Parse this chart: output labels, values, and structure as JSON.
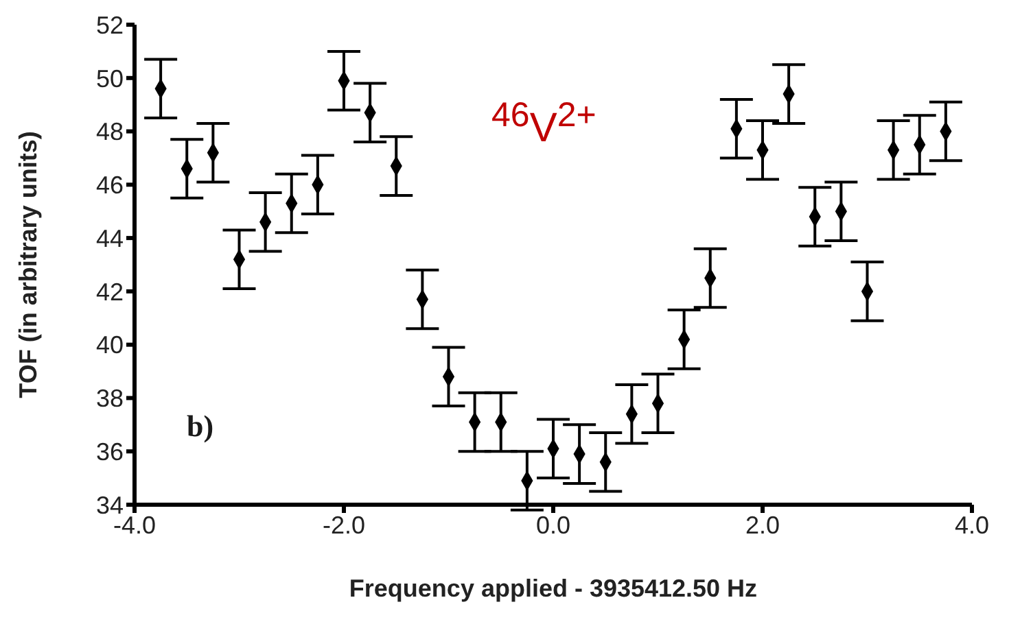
{
  "chart_data": {
    "type": "scatter",
    "xlabel": "Frequency applied - 3935412.50 Hz",
    "ylabel": "TOF (in arbitrary units)",
    "annotations": [
      "$^{46}$V$^{2+}$",
      "b)"
    ],
    "x": [
      -3.75,
      -3.5,
      -3.25,
      -3.0,
      -2.75,
      -2.5,
      -2.25,
      -2.0,
      -1.75,
      -1.5,
      -1.25,
      -1.0,
      -0.75,
      -0.5,
      -0.25,
      0,
      0.25,
      0.5,
      0.75,
      1.0,
      1.25,
      1.5,
      1.75,
      2.0,
      2.25,
      2.5,
      2.75,
      3.0,
      3.25,
      3.5,
      3.75
    ],
    "values": [
      49.6,
      46.6,
      47.2,
      43.2,
      44.6,
      45.3,
      46.0,
      49.9,
      48.7,
      46.7,
      41.7,
      38.8,
      37.1,
      37.1,
      34.9,
      36.1,
      35.9,
      35.6,
      37.4,
      37.8,
      40.2,
      42.5,
      48.1,
      47.3,
      49.4,
      44.8,
      45.0,
      42.0,
      47.3,
      47.5,
      48.0
    ],
    "errors": [
      1.1,
      1.1,
      1.1,
      1.1,
      1.1,
      1.1,
      1.1,
      1.1,
      1.1,
      1.1,
      1.1,
      1.1,
      1.1,
      1.1,
      1.1,
      1.1,
      1.1,
      1.1,
      1.1,
      1.1,
      1.1,
      1.1,
      1.1,
      1.1,
      1.1,
      1.1,
      1.1,
      1.1,
      1.1,
      1.1,
      1.1
    ],
    "color": "#000000",
    "marker": "diamond",
    "xlim": [
      -4,
      4
    ],
    "xticks": [
      {
        "value": -4,
        "label": "-4.0"
      },
      {
        "value": -2,
        "label": "-2.0"
      },
      {
        "value": 0,
        "label": "0.0"
      },
      {
        "value": 2,
        "label": "2.0"
      },
      {
        "value": 4,
        "label": "4.0"
      }
    ],
    "ylim": [
      34,
      52
    ],
    "yticks": [
      34,
      36,
      38,
      40,
      42,
      44,
      46,
      48,
      50,
      52
    ]
  }
}
